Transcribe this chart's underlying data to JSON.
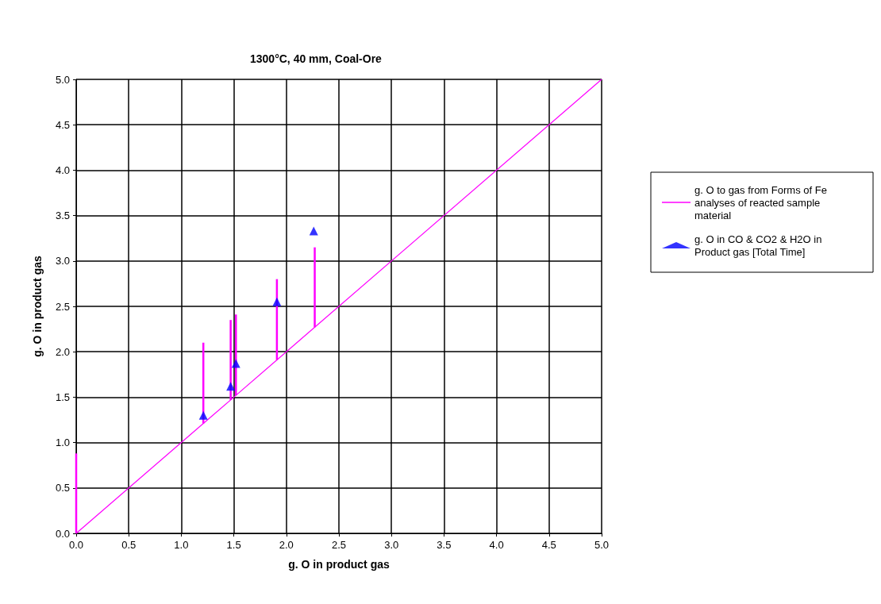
{
  "chart_data": {
    "type": "line",
    "title": "1300°C, 40 mm, Coal-Ore",
    "xlabel": "g. O in product gas",
    "ylabel": "g. O in product gas",
    "xlim": [
      0,
      5
    ],
    "xticks": [
      {
        "value": 0,
        "label": "0.0"
      },
      {
        "value": 0.5,
        "label": "0.5"
      },
      {
        "value": 1,
        "label": "1.0"
      },
      {
        "value": 1.5,
        "label": "1.5"
      },
      {
        "value": 2,
        "label": "2.0"
      },
      {
        "value": 2.5,
        "label": "2.5"
      },
      {
        "value": 3,
        "label": "3.0"
      },
      {
        "value": 3.5,
        "label": "3.5"
      },
      {
        "value": 4,
        "label": "4.0"
      },
      {
        "value": 4.5,
        "label": "4.5"
      },
      {
        "value": 5,
        "label": "5.0"
      }
    ],
    "ylim": [
      0,
      5
    ],
    "yticks": [
      {
        "value": 0,
        "label": "0.0"
      },
      {
        "value": 0.5,
        "label": "0.5"
      },
      {
        "value": 1,
        "label": "1.0"
      },
      {
        "value": 1.5,
        "label": "1.5"
      },
      {
        "value": 2,
        "label": "2.0"
      },
      {
        "value": 2.5,
        "label": "2.5"
      },
      {
        "value": 3,
        "label": "3.0"
      },
      {
        "value": 3.5,
        "label": "3.5"
      },
      {
        "value": 4,
        "label": "4.0"
      },
      {
        "value": 4.5,
        "label": "4.5"
      },
      {
        "value": 5,
        "label": "5.0"
      }
    ],
    "grid": true,
    "legend": "right",
    "series": [
      {
        "name": "g. O to gas from Forms of Fe analyses of reacted sample material",
        "color": "#ff00ff",
        "marker": "none",
        "line_style": "solid",
        "x": [
          0,
          1.21,
          1.47,
          1.52,
          1.91,
          2.27,
          5
        ],
        "values": [
          0,
          1.21,
          1.47,
          1.52,
          1.91,
          2.27,
          5
        ],
        "errors": [
          [
            0,
            0.88
          ],
          [
            1.21,
            2.1
          ],
          [
            1.47,
            2.35
          ],
          [
            1.52,
            2.41
          ],
          [
            1.91,
            2.8
          ],
          [
            2.27,
            3.15
          ],
          null
        ]
      },
      {
        "name": "g. O in CO & CO2 & H2O in Product gas [Total Time]",
        "type": "scatter",
        "color": "#0000ff",
        "marker": "triangle",
        "x": [
          1.21,
          1.47,
          1.52,
          1.91,
          2.26
        ],
        "values": [
          1.3,
          1.62,
          1.87,
          2.55,
          3.33
        ]
      }
    ]
  }
}
